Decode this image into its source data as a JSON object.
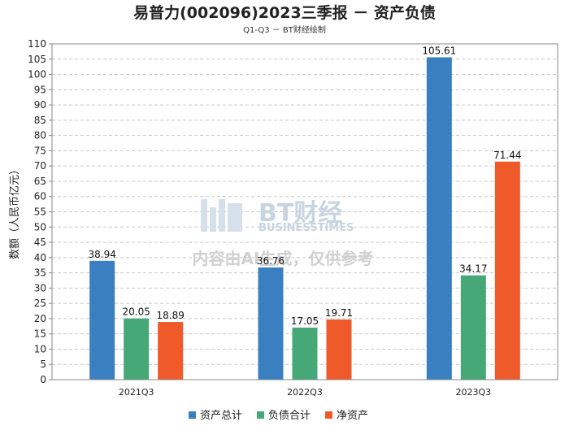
{
  "chart_data": {
    "type": "bar",
    "title": "易普力(002096)2023三季报 － 资产负债",
    "subtitle": "Q1-Q3 － BT财经绘制",
    "ylabel": "数额（人民币亿元）",
    "xlabel": "",
    "ylim": [
      0,
      110
    ],
    "ytick_step": 5,
    "grid": true,
    "legend_position": "bottom",
    "categories": [
      "2021Q3",
      "2022Q3",
      "2023Q3"
    ],
    "series": [
      {
        "name": "资产总计",
        "color": "#3a80c0",
        "values": [
          38.94,
          36.76,
          105.61
        ]
      },
      {
        "name": "负债合计",
        "color": "#45a876",
        "values": [
          20.05,
          17.05,
          34.17
        ]
      },
      {
        "name": "净资产",
        "color": "#f05a2a",
        "values": [
          18.89,
          19.71,
          71.44
        ]
      }
    ]
  },
  "watermark": {
    "brand": "BT财经",
    "brand_en": "BUSINESSTIMES",
    "notice": "内容由AI生成，仅供参考"
  }
}
